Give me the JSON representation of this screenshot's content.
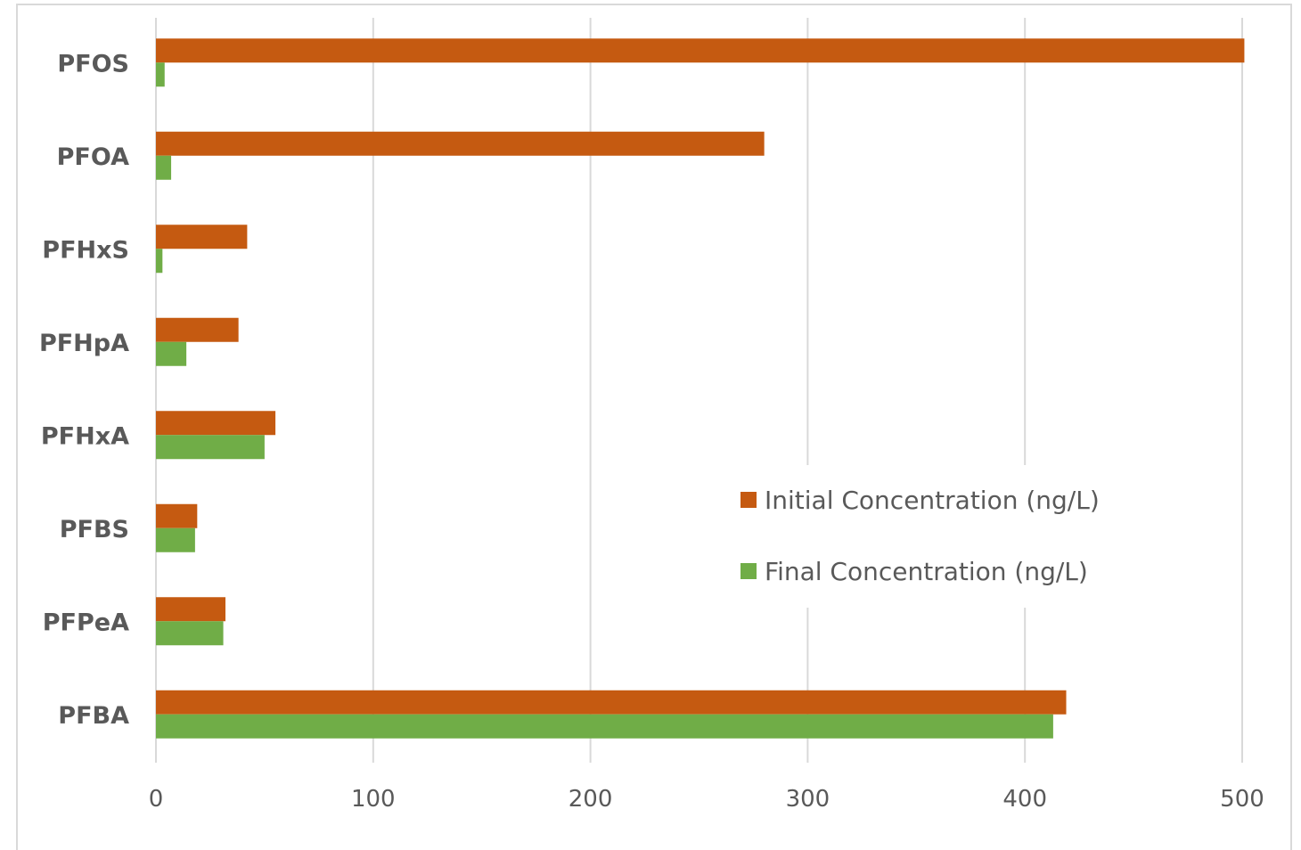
{
  "chart_data": {
    "type": "bar",
    "orientation": "horizontal",
    "categories": [
      "PFOS",
      "PFOA",
      "PFHxS",
      "PFHpA",
      "PFHxA",
      "PFBS",
      "PFPeA",
      "PFBA"
    ],
    "series": [
      {
        "name": "Initial Concentration (ng/L)",
        "color": "#c55a11",
        "values": [
          501,
          280,
          42,
          38,
          55,
          19,
          32,
          419
        ]
      },
      {
        "name": "Final Concentration (ng/L)",
        "color": "#70ad47",
        "values": [
          4,
          7,
          3,
          14,
          50,
          18,
          31,
          413
        ]
      }
    ],
    "xlim": [
      0,
      500
    ],
    "xticks": [
      "0",
      "100",
      "200",
      "300",
      "400",
      "500"
    ],
    "grid": true,
    "legend_position": "center-right",
    "title": "",
    "xlabel": "",
    "ylabel": ""
  }
}
